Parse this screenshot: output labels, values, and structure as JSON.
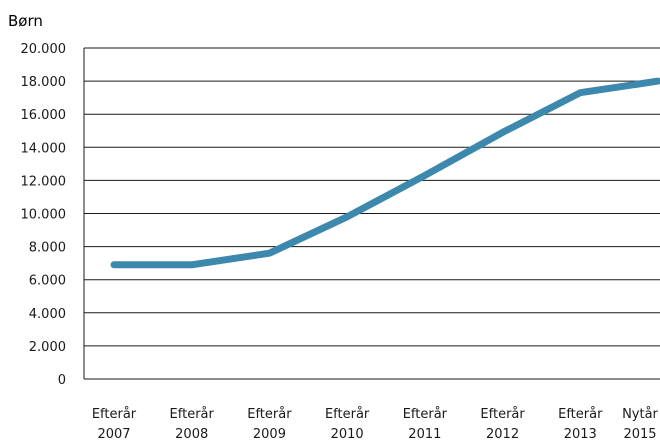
{
  "chart_data": {
    "type": "line",
    "ylabel": "Børn",
    "ylim": [
      0,
      20000
    ],
    "yticks": [
      "0",
      "2.000",
      "4.000",
      "6.000",
      "8.000",
      "10.000",
      "12.000",
      "14.000",
      "16.000",
      "18.000",
      "20.000"
    ],
    "ytick_values": [
      0,
      2000,
      4000,
      6000,
      8000,
      10000,
      12000,
      14000,
      16000,
      18000,
      20000
    ],
    "categories": [
      [
        "Efterår",
        "2007"
      ],
      [
        "Efterår",
        "2008"
      ],
      [
        "Efterår",
        "2009"
      ],
      [
        "Efterår",
        "2010"
      ],
      [
        "Efterår",
        "2011"
      ],
      [
        "Efterår",
        "2012"
      ],
      [
        "Efterår",
        "2013"
      ],
      [
        "Nytår",
        "2015"
      ]
    ],
    "series": [
      {
        "color": "#3d88ad",
        "values": [
          6900,
          6900,
          7600,
          9800,
          12300,
          14900,
          17300,
          18000
        ]
      }
    ],
    "grid": true,
    "legend": "none"
  }
}
